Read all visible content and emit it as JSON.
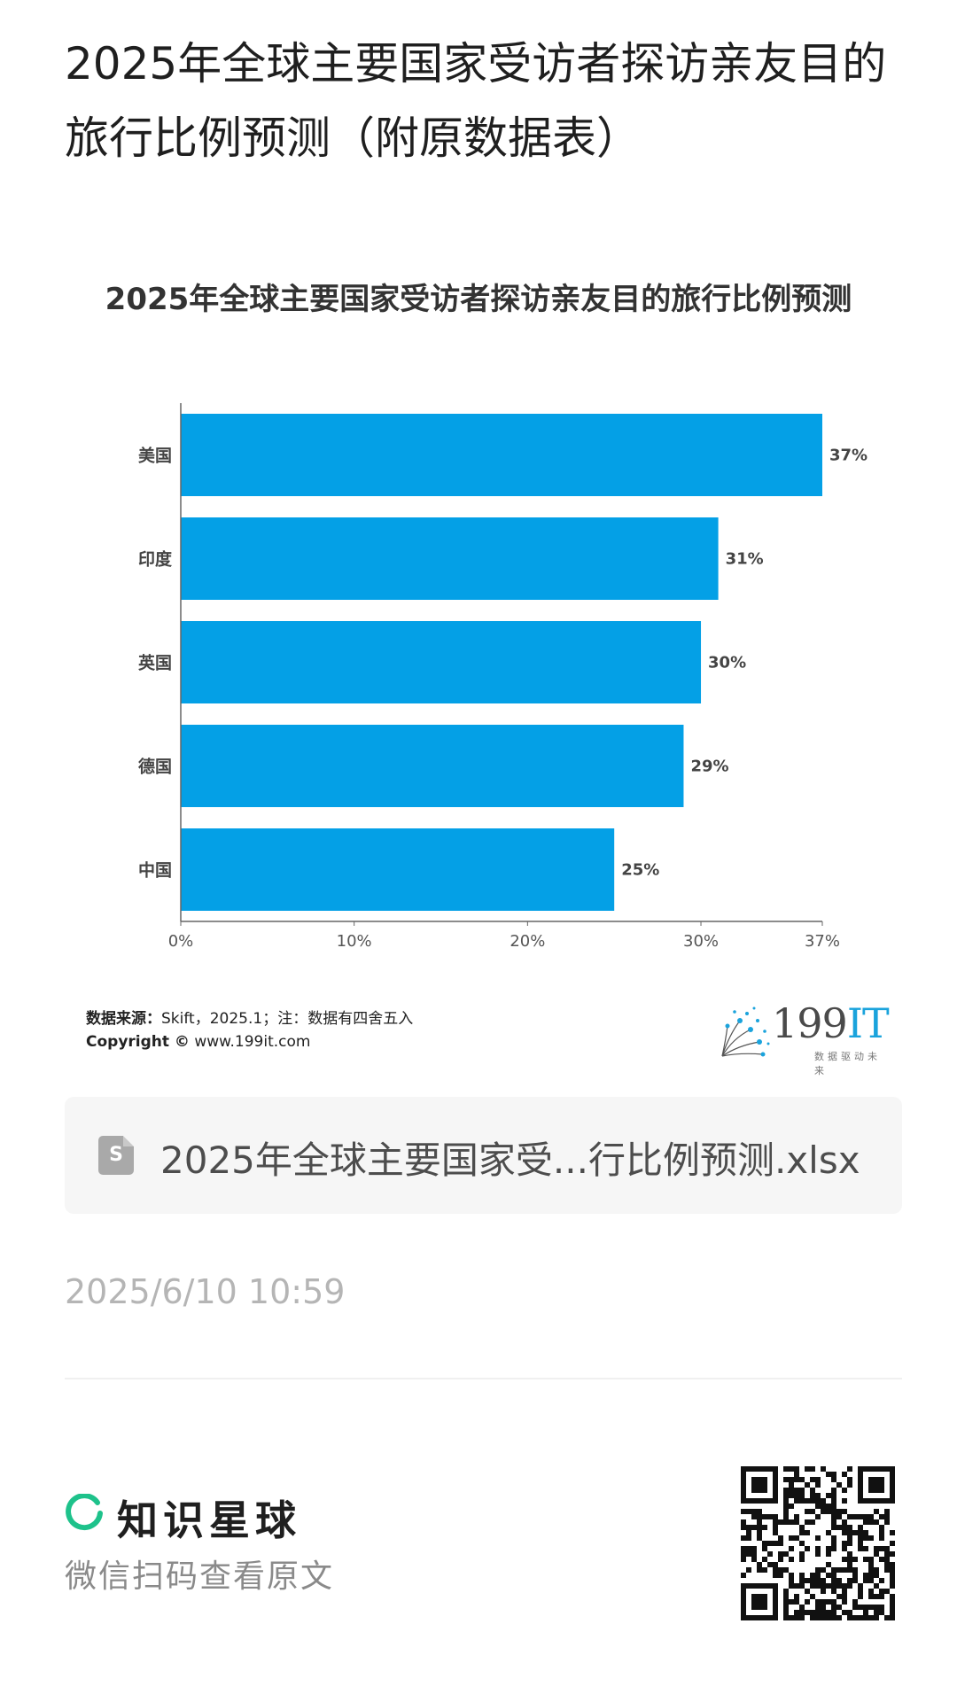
{
  "page": {
    "title": "2025年全球主要国家受访者探访亲友目的旅行比例预测（附原数据表）"
  },
  "chart": {
    "source_label": "数据来源：",
    "source_text": "Skift，2025.1；注：数据有四舍五入",
    "copyright_label": "Copyright ©",
    "copyright_text": "www.199it.com",
    "brand_name_number": "199",
    "brand_name_it": "IT",
    "brand_slogan": "数据驱动未来"
  },
  "chart_data": {
    "type": "bar",
    "orientation": "horizontal",
    "title": "2025年全球主要国家受访者探访亲友目的旅行比例预测",
    "categories": [
      "美国",
      "印度",
      "英国",
      "德国",
      "中国"
    ],
    "values": [
      37,
      31,
      30,
      29,
      25
    ],
    "value_labels": [
      "37%",
      "31%",
      "30%",
      "29%",
      "25%"
    ],
    "xlim": [
      0,
      37
    ],
    "xticks": [
      0,
      10,
      20,
      30,
      37
    ],
    "xtick_labels": [
      "0%",
      "10%",
      "20%",
      "30%",
      "37%"
    ],
    "bar_color": "#04a0e6",
    "grid": false
  },
  "attachment": {
    "file_icon_letter": "S",
    "file_name": "2025年全球主要国家受...行比例预测.xlsx"
  },
  "meta": {
    "timestamp": "2025/6/10 10:59"
  },
  "footer": {
    "planet_name": "知识星球",
    "scan_hint": "微信扫码查看原文",
    "accent_color": "#1ec28b"
  }
}
